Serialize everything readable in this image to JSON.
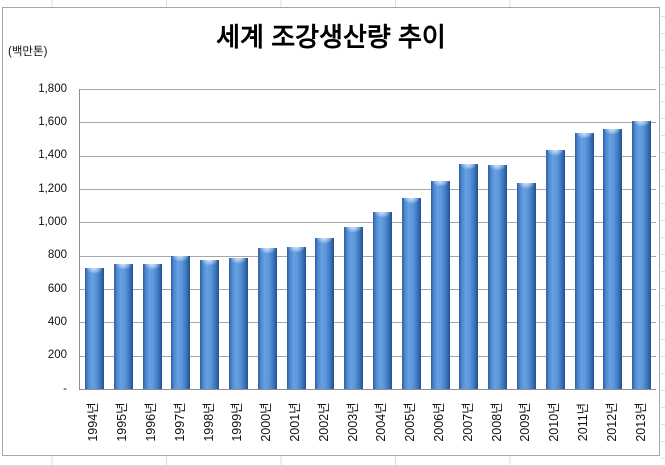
{
  "chart_data": {
    "type": "bar",
    "title": "세계 조강생산량 추이",
    "unit_label": "(백만톤)",
    "categories": [
      "1994년",
      "1995년",
      "1996년",
      "1997년",
      "1998년",
      "1999년",
      "2000년",
      "2001년",
      "2002년",
      "2003년",
      "2004년",
      "2005년",
      "2006년",
      "2007년",
      "2008년",
      "2009년",
      "2010년",
      "2011년",
      "2012년",
      "2013년"
    ],
    "values": [
      725,
      752,
      750,
      799,
      777,
      789,
      848,
      852,
      905,
      970,
      1063,
      1148,
      1250,
      1348,
      1343,
      1239,
      1433,
      1538,
      1560,
      1606
    ],
    "ylim": [
      0,
      1800
    ],
    "ytick_interval": 200,
    "ytick_labels_top_to_bottom": [
      "1,800",
      "1,600",
      "1,400",
      "1,200",
      "1,000",
      "800",
      "600",
      "400",
      "200",
      "-"
    ],
    "grid": true,
    "legend": "none",
    "bar_color": "#4a86ce",
    "bar_edge_color": "#24508b",
    "gridline_color": "#a6a6a6",
    "axis_color": "#8e8e8e",
    "label_color": "#111111"
  }
}
